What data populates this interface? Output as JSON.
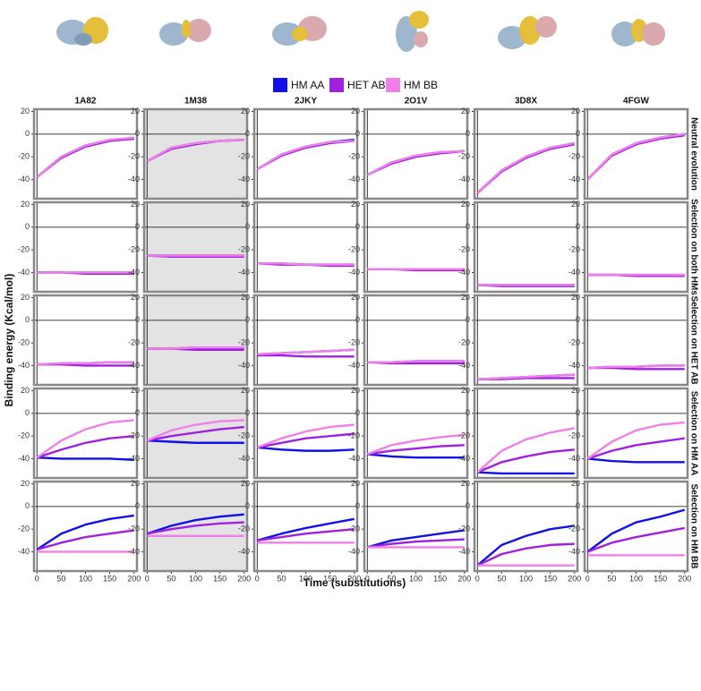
{
  "chart_data": {
    "type": "line",
    "xlabel": "Time (substitutions)",
    "ylabel": "Binding energy (Kcal/mol)",
    "columns": [
      {
        "label": "1A82",
        "shaded": false
      },
      {
        "label": "1M38",
        "shaded": true
      },
      {
        "label": "2JKY",
        "shaded": false
      },
      {
        "label": "2O1V",
        "shaded": false
      },
      {
        "label": "3D8X",
        "shaded": false
      },
      {
        "label": "4FGW",
        "shaded": false
      }
    ],
    "rows": [
      "Neutral evolution",
      "Selection on both HMs",
      "Selection on HET AB",
      "Selection on HM AA",
      "Selection on HM BB"
    ],
    "series": [
      {
        "name": "HM AA",
        "color": "#1010e8"
      },
      {
        "name": "HET AB",
        "color": "#a020e0"
      },
      {
        "name": "HM BB",
        "color": "#f080e8"
      }
    ],
    "x": [
      0,
      50,
      100,
      150,
      200
    ],
    "xlim": [
      -6,
      206
    ],
    "xticks": [
      0,
      50,
      100,
      150,
      200
    ],
    "ylim": [
      -57,
      22
    ],
    "yticks": [
      20,
      0,
      -20,
      -40
    ],
    "hline": 0,
    "panels": [
      [
        [
          [
            -38,
            -20,
            -10,
            -5,
            -4
          ],
          [
            -38,
            -21,
            -11,
            -6,
            -4
          ],
          [
            -38,
            -20,
            -10,
            -5,
            -3
          ]
        ],
        [
          [
            -24,
            -12,
            -8,
            -6,
            -5
          ],
          [
            -24,
            -13,
            -9,
            -6,
            -5
          ],
          [
            -24,
            -12,
            -8,
            -6,
            -5
          ]
        ],
        [
          [
            -31,
            -18,
            -11,
            -7,
            -5
          ],
          [
            -31,
            -19,
            -12,
            -8,
            -6
          ],
          [
            -31,
            -18,
            -11,
            -7,
            -6
          ]
        ],
        [
          [
            -36,
            -25,
            -19,
            -16,
            -15
          ],
          [
            -36,
            -26,
            -20,
            -17,
            -15
          ],
          [
            -36,
            -25,
            -19,
            -16,
            -15
          ]
        ],
        [
          [
            -52,
            -32,
            -20,
            -12,
            -8
          ],
          [
            -52,
            -33,
            -21,
            -13,
            -9
          ],
          [
            -52,
            -32,
            -20,
            -12,
            -8
          ]
        ],
        [
          [
            -40,
            -18,
            -8,
            -3,
            0
          ],
          [
            -40,
            -19,
            -9,
            -4,
            -1
          ],
          [
            -40,
            -18,
            -8,
            -3,
            0
          ]
        ]
      ],
      [
        [
          [
            -40,
            -40,
            -40,
            -40,
            -40
          ],
          [
            -40,
            -40,
            -41,
            -41,
            -41
          ],
          [
            -40,
            -40,
            -40,
            -40,
            -40
          ]
        ],
        [
          [
            -25,
            -25,
            -25,
            -25,
            -25
          ],
          [
            -25,
            -26,
            -26,
            -26,
            -26
          ],
          [
            -25,
            -25,
            -25,
            -25,
            -25
          ]
        ],
        [
          [
            -32,
            -32,
            -33,
            -33,
            -33
          ],
          [
            -32,
            -33,
            -33,
            -34,
            -34
          ],
          [
            -32,
            -32,
            -33,
            -33,
            -33
          ]
        ],
        [
          [
            -37,
            -37,
            -37,
            -37,
            -37
          ],
          [
            -37,
            -37,
            -38,
            -38,
            -38
          ],
          [
            -37,
            -37,
            -37,
            -37,
            -37
          ]
        ],
        [
          [
            -51,
            -51,
            -51,
            -51,
            -51
          ],
          [
            -51,
            -52,
            -52,
            -52,
            -52
          ],
          [
            -51,
            -51,
            -51,
            -51,
            -51
          ]
        ],
        [
          [
            -42,
            -42,
            -42,
            -42,
            -42
          ],
          [
            -42,
            -42,
            -43,
            -43,
            -43
          ],
          [
            -42,
            -42,
            -42,
            -42,
            -42
          ]
        ]
      ],
      [
        [
          [
            -39,
            -38,
            -38,
            -37,
            -37
          ],
          [
            -39,
            -39,
            -40,
            -40,
            -40
          ],
          [
            -39,
            -38,
            -38,
            -37,
            -37
          ]
        ],
        [
          [
            -25,
            -25,
            -24,
            -24,
            -24
          ],
          [
            -25,
            -25,
            -26,
            -26,
            -26
          ],
          [
            -25,
            -25,
            -24,
            -24,
            -24
          ]
        ],
        [
          [
            -30,
            -29,
            -28,
            -27,
            -26
          ],
          [
            -31,
            -31,
            -32,
            -32,
            -32
          ],
          [
            -30,
            -29,
            -28,
            -27,
            -26
          ]
        ],
        [
          [
            -37,
            -37,
            -36,
            -36,
            -36
          ],
          [
            -37,
            -38,
            -38,
            -38,
            -38
          ],
          [
            -37,
            -37,
            -36,
            -36,
            -36
          ]
        ],
        [
          [
            -52,
            -51,
            -50,
            -49,
            -48
          ],
          [
            -52,
            -52,
            -51,
            -51,
            -51
          ],
          [
            -52,
            -51,
            -50,
            -49,
            -48
          ]
        ],
        [
          [
            -42,
            -41,
            -41,
            -40,
            -40
          ],
          [
            -42,
            -42,
            -43,
            -43,
            -43
          ],
          [
            -42,
            -41,
            -41,
            -40,
            -40
          ]
        ]
      ],
      [
        [
          [
            -39,
            -40,
            -40,
            -40,
            -41
          ],
          [
            -39,
            -32,
            -26,
            -22,
            -20
          ],
          [
            -39,
            -24,
            -14,
            -8,
            -6
          ]
        ],
        [
          [
            -24,
            -25,
            -26,
            -26,
            -26
          ],
          [
            -24,
            -20,
            -17,
            -14,
            -12
          ],
          [
            -24,
            -15,
            -10,
            -7,
            -6
          ]
        ],
        [
          [
            -30,
            -32,
            -33,
            -33,
            -32
          ],
          [
            -30,
            -26,
            -22,
            -20,
            -18
          ],
          [
            -30,
            -22,
            -16,
            -12,
            -10
          ]
        ],
        [
          [
            -36,
            -38,
            -39,
            -39,
            -39
          ],
          [
            -36,
            -33,
            -31,
            -29,
            -28
          ],
          [
            -36,
            -28,
            -24,
            -21,
            -19
          ]
        ],
        [
          [
            -52,
            -53,
            -53,
            -53,
            -53
          ],
          [
            -52,
            -43,
            -38,
            -34,
            -32
          ],
          [
            -52,
            -33,
            -23,
            -17,
            -13
          ]
        ],
        [
          [
            -40,
            -42,
            -43,
            -43,
            -43
          ],
          [
            -40,
            -33,
            -28,
            -25,
            -22
          ],
          [
            -40,
            -25,
            -15,
            -10,
            -8
          ]
        ]
      ],
      [
        [
          [
            -38,
            -24,
            -16,
            -11,
            -8
          ],
          [
            -38,
            -32,
            -27,
            -24,
            -21
          ],
          [
            -40,
            -40,
            -40,
            -40,
            -40
          ]
        ],
        [
          [
            -24,
            -17,
            -12,
            -9,
            -7
          ],
          [
            -24,
            -20,
            -17,
            -15,
            -14
          ],
          [
            -26,
            -26,
            -26,
            -26,
            -26
          ]
        ],
        [
          [
            -30,
            -24,
            -19,
            -15,
            -11
          ],
          [
            -30,
            -27,
            -24,
            -22,
            -20
          ],
          [
            -32,
            -32,
            -32,
            -32,
            -32
          ]
        ],
        [
          [
            -36,
            -30,
            -27,
            -24,
            -21
          ],
          [
            -36,
            -33,
            -31,
            -30,
            -29
          ],
          [
            -36,
            -36,
            -36,
            -36,
            -36
          ]
        ],
        [
          [
            -52,
            -34,
            -26,
            -20,
            -17
          ],
          [
            -52,
            -42,
            -37,
            -34,
            -33
          ],
          [
            -52,
            -52,
            -52,
            -52,
            -52
          ]
        ],
        [
          [
            -40,
            -24,
            -14,
            -9,
            -3
          ],
          [
            -40,
            -32,
            -27,
            -23,
            -19
          ],
          [
            -43,
            -43,
            -43,
            -43,
            -43
          ]
        ]
      ]
    ]
  }
}
